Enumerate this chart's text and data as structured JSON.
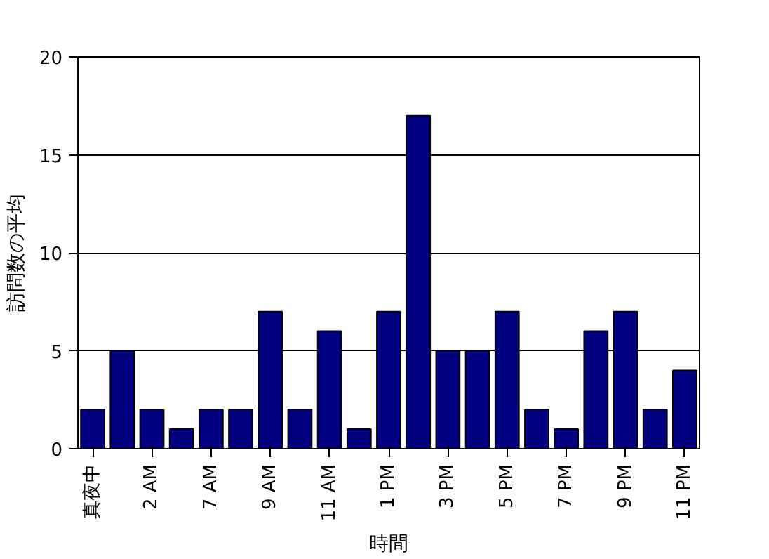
{
  "chart_data": {
    "type": "bar",
    "xlabel": "時間",
    "ylabel": "訪問数の平均",
    "categories": [
      "真夜中",
      null,
      "2 AM",
      null,
      "7 AM",
      null,
      "9 AM",
      null,
      "11 AM",
      null,
      "1 PM",
      null,
      "3 PM",
      null,
      "5 PM",
      null,
      "7 PM",
      null,
      "9 PM",
      null,
      "11 PM"
    ],
    "values": [
      2,
      5,
      2,
      1,
      2,
      2,
      7,
      2,
      6,
      1,
      7,
      17,
      5,
      5,
      7,
      2,
      1,
      6,
      7,
      2,
      4
    ],
    "color": "#000080",
    "ylim": [
      0,
      20
    ],
    "yticks": [
      0,
      5,
      10,
      15,
      20
    ],
    "grid": "y"
  }
}
